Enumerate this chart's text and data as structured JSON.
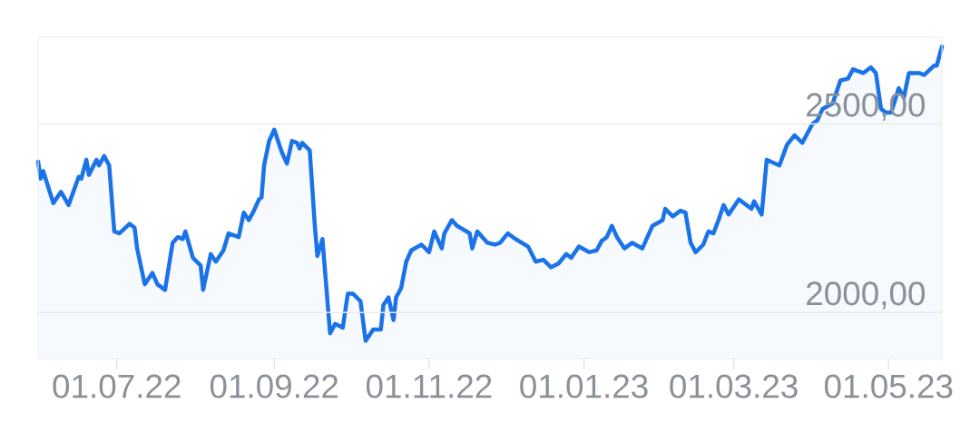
{
  "chart_data": {
    "type": "area",
    "color": "#1a73e8",
    "x": [
      "2022-05-31",
      "2022-06-01",
      "2022-06-02",
      "2022-06-06",
      "2022-06-09",
      "2022-06-12",
      "2022-06-16",
      "2022-06-17",
      "2022-06-19",
      "2022-06-20",
      "2022-06-23",
      "2022-06-24",
      "2022-06-26",
      "2022-06-28",
      "2022-06-30",
      "2022-07-02",
      "2022-07-06",
      "2022-07-08",
      "2022-07-09",
      "2022-07-12",
      "2022-07-15",
      "2022-07-17",
      "2022-07-20",
      "2022-07-23",
      "2022-07-25",
      "2022-07-27",
      "2022-07-28",
      "2022-07-31",
      "2022-08-03",
      "2022-08-04",
      "2022-08-07",
      "2022-08-09",
      "2022-08-12",
      "2022-08-14",
      "2022-08-18",
      "2022-08-20",
      "2022-08-22",
      "2022-08-24",
      "2022-08-26",
      "2022-08-27",
      "2022-08-28",
      "2022-08-30",
      "2022-09-01",
      "2022-09-04",
      "2022-09-06",
      "2022-09-08",
      "2022-09-10",
      "2022-09-11",
      "2022-09-12",
      "2022-09-15",
      "2022-09-17",
      "2022-09-18",
      "2022-09-20",
      "2022-09-23",
      "2022-09-25",
      "2022-09-28",
      "2022-09-30",
      "2022-10-02",
      "2022-10-05",
      "2022-10-07",
      "2022-10-10",
      "2022-10-13",
      "2022-10-14",
      "2022-10-16",
      "2022-10-18",
      "2022-10-19",
      "2022-10-21",
      "2022-10-23",
      "2022-10-25",
      "2022-10-29",
      "2022-11-01",
      "2022-11-03",
      "2022-11-06",
      "2022-11-07",
      "2022-11-10",
      "2022-11-12",
      "2022-11-17",
      "2022-11-18",
      "2022-11-20",
      "2022-11-24",
      "2022-11-27",
      "2022-11-29",
      "2022-12-02",
      "2022-12-05",
      "2022-12-10",
      "2022-12-13",
      "2022-12-16",
      "2022-12-19",
      "2022-12-22",
      "2022-12-25",
      "2022-12-27",
      "2022-12-30",
      "2023-01-03",
      "2023-01-06",
      "2023-01-08",
      "2023-01-10",
      "2023-01-12",
      "2023-01-14",
      "2023-01-17",
      "2023-01-20",
      "2023-01-24",
      "2023-01-28",
      "2023-02-01",
      "2023-02-02",
      "2023-02-05",
      "2023-02-08",
      "2023-02-10",
      "2023-02-12",
      "2023-02-14",
      "2023-02-17",
      "2023-02-19",
      "2023-02-21",
      "2023-02-23",
      "2023-02-25",
      "2023-02-27",
      "2023-03-03",
      "2023-03-08",
      "2023-03-09",
      "2023-03-12",
      "2023-03-14",
      "2023-03-19",
      "2023-03-22",
      "2023-03-25",
      "2023-03-28",
      "2023-04-01",
      "2023-04-03",
      "2023-04-05",
      "2023-04-09",
      "2023-04-12",
      "2023-04-15",
      "2023-04-17",
      "2023-04-21",
      "2023-04-24",
      "2023-04-26",
      "2023-04-28",
      "2023-04-30",
      "2023-05-02",
      "2023-05-05",
      "2023-05-07",
      "2023-05-09",
      "2023-05-13",
      "2023-05-15",
      "2023-05-19",
      "2023-05-20",
      "2023-05-22"
    ],
    "values": [
      2400,
      2355,
      2375,
      2290,
      2320,
      2285,
      2360,
      2355,
      2405,
      2365,
      2405,
      2390,
      2415,
      2390,
      2215,
      2210,
      2235,
      2225,
      2170,
      2075,
      2105,
      2075,
      2060,
      2185,
      2200,
      2195,
      2215,
      2145,
      2125,
      2060,
      2155,
      2135,
      2165,
      2210,
      2200,
      2265,
      2245,
      2270,
      2300,
      2305,
      2390,
      2455,
      2485,
      2425,
      2395,
      2455,
      2450,
      2435,
      2450,
      2430,
      2230,
      2150,
      2195,
      1945,
      1970,
      1960,
      2050,
      2050,
      2030,
      1925,
      1955,
      1955,
      2020,
      2040,
      1980,
      2040,
      2065,
      2135,
      2165,
      2180,
      2160,
      2215,
      2170,
      2210,
      2245,
      2230,
      2210,
      2170,
      2215,
      2185,
      2180,
      2185,
      2210,
      2195,
      2175,
      2135,
      2140,
      2120,
      2130,
      2155,
      2145,
      2175,
      2160,
      2165,
      2190,
      2200,
      2230,
      2200,
      2170,
      2185,
      2170,
      2230,
      2245,
      2275,
      2255,
      2270,
      2265,
      2185,
      2160,
      2180,
      2215,
      2210,
      2245,
      2285,
      2260,
      2300,
      2275,
      2295,
      2260,
      2405,
      2390,
      2445,
      2470,
      2450,
      2500,
      2510,
      2540,
      2555,
      2615,
      2620,
      2645,
      2635,
      2650,
      2635,
      2540,
      2530,
      2530,
      2595,
      2570,
      2635,
      2635,
      2630,
      2655,
      2655,
      2705
    ],
    "xlim": [
      "2022-05-31",
      "2023-05-22"
    ],
    "ylim": [
      1878,
      2730
    ],
    "xticks": [
      {
        "value": "2022-07-01",
        "label": "01.07.22"
      },
      {
        "value": "2022-09-01",
        "label": "01.09.22"
      },
      {
        "value": "2022-11-01",
        "label": "01.11.22"
      },
      {
        "value": "2023-01-01",
        "label": "01.01.23"
      },
      {
        "value": "2023-03-01",
        "label": "01.03.23"
      },
      {
        "value": "2023-05-01",
        "label": "01.05.23"
      }
    ],
    "yticks": [
      {
        "value": 2000,
        "label": "2000,00"
      },
      {
        "value": 2500,
        "label": "2500,00"
      }
    ],
    "grid": "y"
  }
}
